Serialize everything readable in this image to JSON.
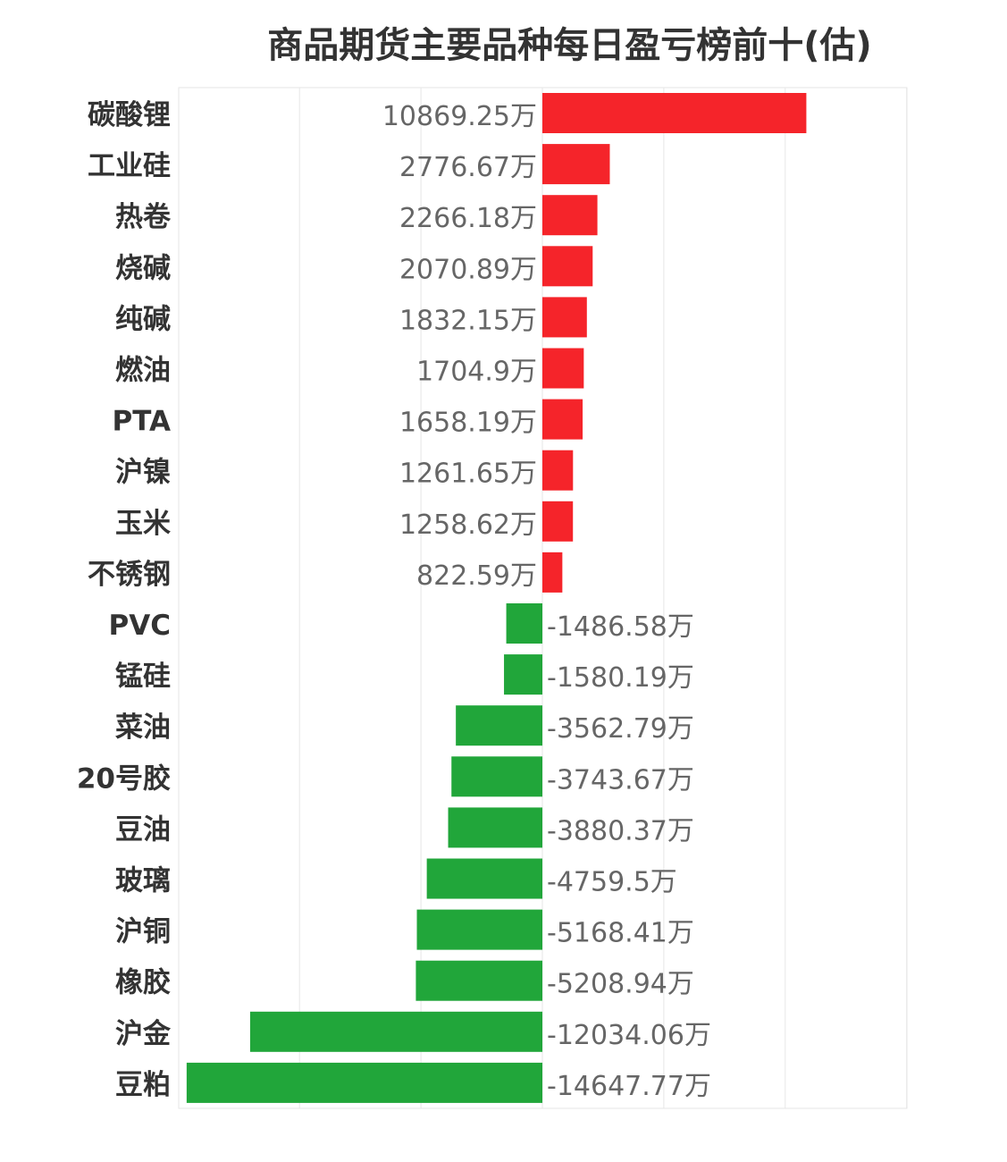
{
  "chart_data": {
    "type": "bar",
    "orientation": "horizontal",
    "title": "商品期货主要品种每日盈亏榜前十(估)",
    "unit": "万",
    "categories": [
      "碳酸锂",
      "工业硅",
      "热卷",
      "烧碱",
      "纯碱",
      "燃油",
      "PTA",
      "沪镍",
      "玉米",
      "不锈钢",
      "PVC",
      "锰硅",
      "菜油",
      "20号胶",
      "豆油",
      "玻璃",
      "沪铜",
      "橡胶",
      "沪金",
      "豆粕"
    ],
    "values": [
      10869.25,
      2776.67,
      2266.18,
      2070.89,
      1832.15,
      1704.9,
      1658.19,
      1261.65,
      1258.62,
      822.59,
      -1486.58,
      -1580.19,
      -3562.79,
      -3743.67,
      -3880.37,
      -4759.5,
      -5168.41,
      -5208.94,
      -12034.06,
      -14647.77
    ],
    "value_labels": [
      "10869.25万",
      "2776.67万",
      "2266.18万",
      "2070.89万",
      "1832.15万",
      "1704.9万",
      "1658.19万",
      "1261.65万",
      "1258.62万",
      "822.59万",
      "-1486.58万",
      "-1580.19万",
      "-3562.79万",
      "-3743.67万",
      "-3880.37万",
      "-4759.5万",
      "-5168.41万",
      "-5208.94万",
      "-12034.06万",
      "-14647.77万"
    ],
    "xlim": [
      -15000,
      15000
    ],
    "grid_step": 5000,
    "grid": true,
    "colors": {
      "positive": "#f5242a",
      "negative": "#21a63a",
      "grid": "#e6e6e6",
      "label": "#666666",
      "category": "#333333"
    }
  }
}
